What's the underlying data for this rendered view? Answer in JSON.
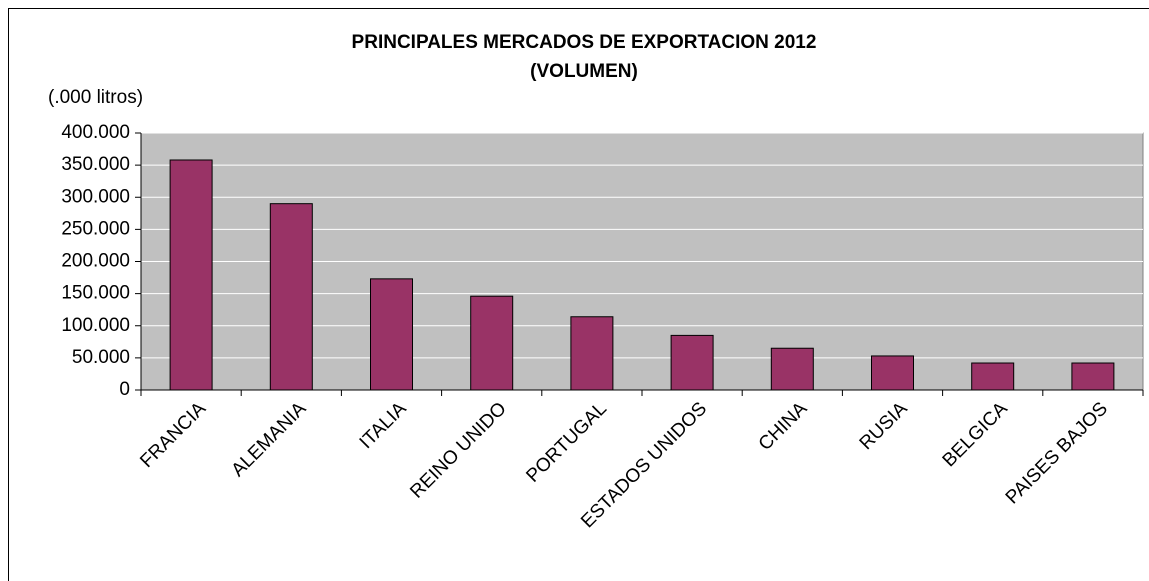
{
  "chart_data": {
    "type": "bar",
    "title": "PRINCIPALES MERCADOS DE EXPORTACION 2012",
    "subtitle": "(VOLUMEN)",
    "y_label": "(.000 litros)",
    "categories": [
      "FRANCIA",
      "ALEMANIA",
      "ITALIA",
      "REINO UNIDO",
      "PORTUGAL",
      "ESTADOS UNIDOS",
      "CHINA",
      "RUSIA",
      "BELGICA",
      "PAISES BAJOS"
    ],
    "values": [
      358000,
      290000,
      173000,
      146000,
      114000,
      85000,
      65000,
      53000,
      42000,
      42000
    ],
    "color": "#993366",
    "ylim": [
      0,
      400000
    ],
    "yticks": [
      0,
      {
        "value": 50000,
        "label": "50.000"
      },
      {
        "value": 100000,
        "label": "100.000"
      },
      {
        "value": 150000,
        "label": "150.000"
      },
      {
        "value": 200000,
        "label": "200.000"
      },
      {
        "value": 250000,
        "label": "250.000"
      },
      {
        "value": 300000,
        "label": "300.000"
      },
      {
        "value": 350000,
        "label": "350.000"
      },
      {
        "value": 400000,
        "label": "400.000"
      }
    ],
    "grid": true
  }
}
